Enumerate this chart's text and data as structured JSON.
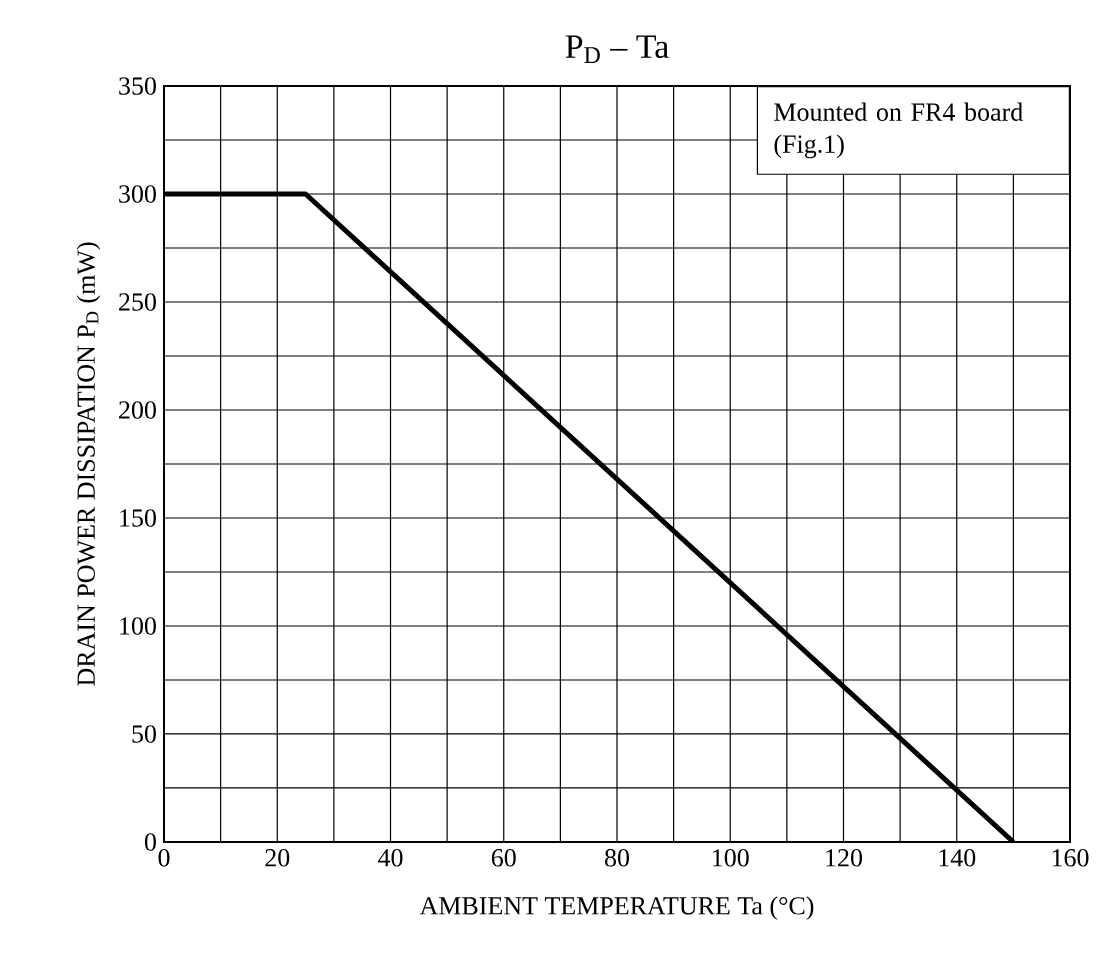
{
  "chart_data": {
    "type": "line",
    "title": "P$_{D}$ – Ta",
    "xlabel": "AMBIENT TEMPERATURE   Ta   (°C)",
    "ylabel": "DRAIN POWER DISSIPATION   P$_{D}$   (mW)",
    "x": [
      0,
      25,
      150
    ],
    "series": [
      {
        "color": "#000000",
        "values": [
          300,
          300,
          0
        ]
      }
    ],
    "xlim": [
      0,
      160
    ],
    "ylim": [
      0,
      350
    ],
    "xticks": [
      0,
      {
        "value": 10,
        "label": null
      },
      20,
      {
        "value": 30,
        "label": null
      },
      40,
      {
        "value": 50,
        "label": null
      },
      60,
      {
        "value": 70,
        "label": null
      },
      80,
      {
        "value": 90,
        "label": null
      },
      100,
      {
        "value": 110,
        "label": null
      },
      120,
      {
        "value": 130,
        "label": null
      },
      140,
      {
        "value": 150,
        "label": null
      },
      160
    ],
    "yticks": [
      0,
      {
        "value": 25,
        "label": null
      },
      50,
      {
        "value": 75,
        "label": null
      },
      100,
      {
        "value": 125,
        "label": null
      },
      150,
      {
        "value": 175,
        "label": null
      },
      200,
      {
        "value": 225,
        "label": null
      },
      250,
      {
        "value": 275,
        "label": null
      },
      300,
      {
        "value": 325,
        "label": null
      },
      350
    ],
    "grid": true,
    "marker": "none",
    "line_style": "solid",
    "annotations": [
      "Mounted on FR4 board (Fig.1)"
    ]
  }
}
